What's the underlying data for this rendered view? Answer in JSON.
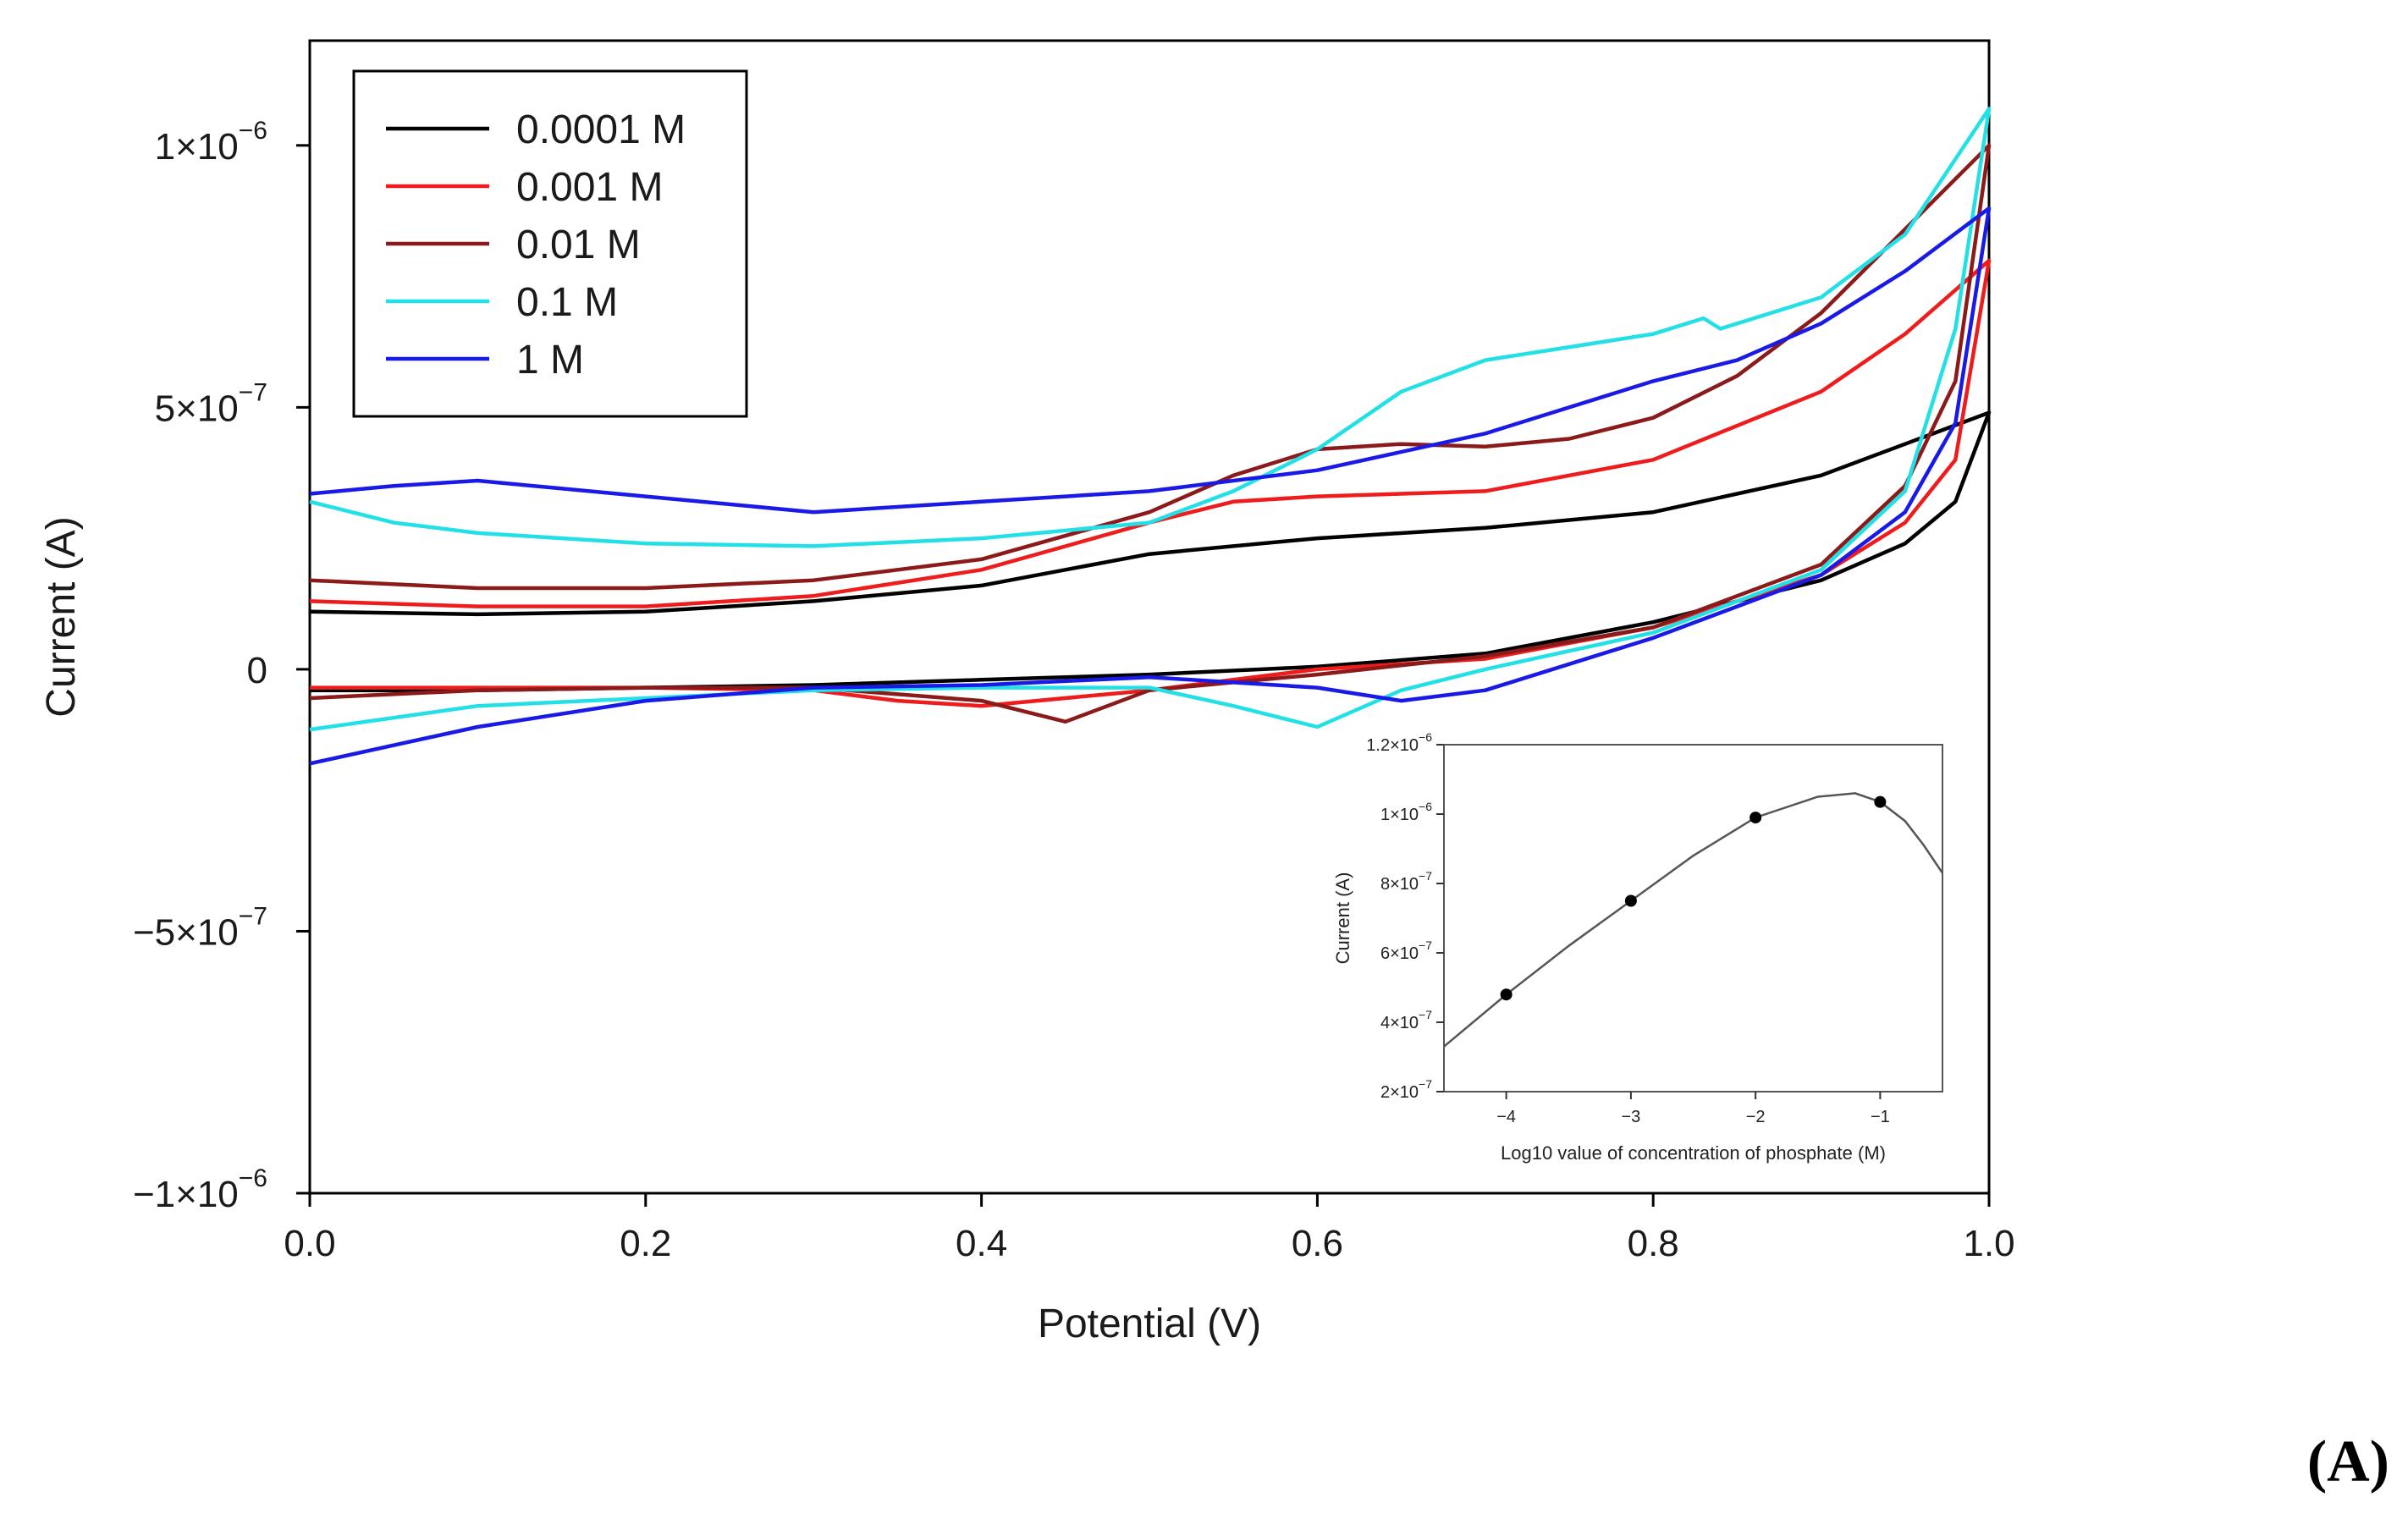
{
  "panel_label": "(A)",
  "chart_data": [
    {
      "type": "line",
      "xlabel": "Potential (V)",
      "ylabel": "Current (A)",
      "xlim": [
        0.0,
        1.0
      ],
      "ylim": [
        -1e-06,
        1.2e-06
      ],
      "xticks": [
        0.0,
        0.2,
        0.4,
        0.6,
        0.8,
        1.0
      ],
      "xtick_labels": [
        "0.0",
        "0.2",
        "0.4",
        "0.6",
        "0.8",
        "1.0"
      ],
      "yticks": [
        1e-06,
        5e-07,
        0,
        -5e-07,
        -1e-06
      ],
      "ytick_labels": [
        {
          "mantissa": "1",
          "exp": "−6"
        },
        {
          "mantissa": "5",
          "exp": "−7"
        },
        {
          "mantissa": "0",
          "exp": ""
        },
        {
          "mantissa": "−5",
          "exp": "−7"
        },
        {
          "mantissa": "−1",
          "exp": "−6"
        }
      ],
      "legend_position": "top-left",
      "series": [
        {
          "name": "0.0001 M",
          "color": "#000000",
          "forward": [
            [
              0,
              1.1e-07
            ],
            [
              0.1,
              1.05e-07
            ],
            [
              0.2,
              1.1e-07
            ],
            [
              0.3,
              1.3e-07
            ],
            [
              0.4,
              1.6e-07
            ],
            [
              0.5,
              2.2e-07
            ],
            [
              0.6,
              2.5e-07
            ],
            [
              0.7,
              2.7e-07
            ],
            [
              0.8,
              3e-07
            ],
            [
              0.9,
              3.7e-07
            ],
            [
              0.95,
              4.3e-07
            ],
            [
              1.0,
              4.9e-07
            ]
          ],
          "reverse": [
            [
              1.0,
              4.9e-07
            ],
            [
              0.98,
              3.2e-07
            ],
            [
              0.95,
              2.4e-07
            ],
            [
              0.9,
              1.7e-07
            ],
            [
              0.8,
              9e-08
            ],
            [
              0.7,
              3e-08
            ],
            [
              0.6,
              5e-09
            ],
            [
              0.5,
              -1e-08
            ],
            [
              0.4,
              -2e-08
            ],
            [
              0.3,
              -3e-08
            ],
            [
              0.2,
              -3.5e-08
            ],
            [
              0.1,
              -4e-08
            ],
            [
              0,
              -4e-08
            ]
          ]
        },
        {
          "name": "0.001 M",
          "color": "#ee1c1c",
          "forward": [
            [
              0,
              1.3e-07
            ],
            [
              0.1,
              1.2e-07
            ],
            [
              0.2,
              1.2e-07
            ],
            [
              0.3,
              1.4e-07
            ],
            [
              0.4,
              1.9e-07
            ],
            [
              0.5,
              2.8e-07
            ],
            [
              0.55,
              3.2e-07
            ],
            [
              0.6,
              3.3e-07
            ],
            [
              0.7,
              3.4e-07
            ],
            [
              0.8,
              4e-07
            ],
            [
              0.9,
              5.3e-07
            ],
            [
              0.95,
              6.4e-07
            ],
            [
              1.0,
              7.8e-07
            ]
          ],
          "reverse": [
            [
              1.0,
              7.8e-07
            ],
            [
              0.98,
              4e-07
            ],
            [
              0.95,
              2.8e-07
            ],
            [
              0.9,
              1.8e-07
            ],
            [
              0.8,
              8e-08
            ],
            [
              0.7,
              2e-08
            ],
            [
              0.6,
              0
            ],
            [
              0.5,
              -4e-08
            ],
            [
              0.4,
              -7e-08
            ],
            [
              0.35,
              -6e-08
            ],
            [
              0.3,
              -4e-08
            ],
            [
              0.2,
              -3.5e-08
            ],
            [
              0.1,
              -3.5e-08
            ],
            [
              0,
              -3.5e-08
            ]
          ]
        },
        {
          "name": "0.01 M",
          "color": "#8b1a1a",
          "forward": [
            [
              0,
              1.7e-07
            ],
            [
              0.1,
              1.55e-07
            ],
            [
              0.2,
              1.55e-07
            ],
            [
              0.3,
              1.7e-07
            ],
            [
              0.4,
              2.1e-07
            ],
            [
              0.5,
              3e-07
            ],
            [
              0.55,
              3.7e-07
            ],
            [
              0.6,
              4.2e-07
            ],
            [
              0.65,
              4.3e-07
            ],
            [
              0.7,
              4.25e-07
            ],
            [
              0.75,
              4.4e-07
            ],
            [
              0.8,
              4.8e-07
            ],
            [
              0.85,
              5.6e-07
            ],
            [
              0.9,
              6.8e-07
            ],
            [
              0.95,
              8.4e-07
            ],
            [
              1.0,
              1e-06
            ]
          ],
          "reverse": [
            [
              1.0,
              1e-06
            ],
            [
              0.98,
              5.5e-07
            ],
            [
              0.95,
              3.5e-07
            ],
            [
              0.9,
              2e-07
            ],
            [
              0.8,
              8e-08
            ],
            [
              0.7,
              2.5e-08
            ],
            [
              0.6,
              -1e-08
            ],
            [
              0.5,
              -4e-08
            ],
            [
              0.45,
              -1e-07
            ],
            [
              0.4,
              -6e-08
            ],
            [
              0.3,
              -3.5e-08
            ],
            [
              0.2,
              -3.5e-08
            ],
            [
              0.1,
              -4e-08
            ],
            [
              0,
              -5.5e-08
            ]
          ]
        },
        {
          "name": "0.1 M",
          "color": "#22e0e6",
          "forward": [
            [
              0,
              3.2e-07
            ],
            [
              0.05,
              2.8e-07
            ],
            [
              0.1,
              2.6e-07
            ],
            [
              0.2,
              2.4e-07
            ],
            [
              0.3,
              2.35e-07
            ],
            [
              0.4,
              2.5e-07
            ],
            [
              0.5,
              2.8e-07
            ],
            [
              0.55,
              3.4e-07
            ],
            [
              0.6,
              4.2e-07
            ],
            [
              0.65,
              5.3e-07
            ],
            [
              0.7,
              5.9e-07
            ],
            [
              0.8,
              6.4e-07
            ],
            [
              0.83,
              6.7e-07
            ],
            [
              0.84,
              6.5e-07
            ],
            [
              0.9,
              7.1e-07
            ],
            [
              0.95,
              8.3e-07
            ],
            [
              1.0,
              1.07e-06
            ]
          ],
          "reverse": [
            [
              1.0,
              1.07e-06
            ],
            [
              0.98,
              6.5e-07
            ],
            [
              0.95,
              3.4e-07
            ],
            [
              0.9,
              1.9e-07
            ],
            [
              0.8,
              7e-08
            ],
            [
              0.7,
              0
            ],
            [
              0.65,
              -4e-08
            ],
            [
              0.6,
              -1.1e-07
            ],
            [
              0.55,
              -7e-08
            ],
            [
              0.5,
              -3.5e-08
            ],
            [
              0.4,
              -3.5e-08
            ],
            [
              0.3,
              -4e-08
            ],
            [
              0.2,
              -5.5e-08
            ],
            [
              0.1,
              -7e-08
            ],
            [
              0,
              -1.15e-07
            ]
          ]
        },
        {
          "name": "1 M",
          "color": "#1a1ae6",
          "forward": [
            [
              0,
              3.35e-07
            ],
            [
              0.05,
              3.5e-07
            ],
            [
              0.1,
              3.6e-07
            ],
            [
              0.2,
              3.3e-07
            ],
            [
              0.3,
              3e-07
            ],
            [
              0.4,
              3.2e-07
            ],
            [
              0.5,
              3.4e-07
            ],
            [
              0.6,
              3.8e-07
            ],
            [
              0.7,
              4.5e-07
            ],
            [
              0.8,
              5.5e-07
            ],
            [
              0.85,
              5.9e-07
            ],
            [
              0.9,
              6.6e-07
            ],
            [
              0.95,
              7.6e-07
            ],
            [
              1.0,
              8.8e-07
            ]
          ],
          "reverse": [
            [
              1.0,
              8.8e-07
            ],
            [
              0.98,
              4.7e-07
            ],
            [
              0.95,
              3e-07
            ],
            [
              0.9,
              1.8e-07
            ],
            [
              0.8,
              6e-08
            ],
            [
              0.7,
              -4e-08
            ],
            [
              0.65,
              -6e-08
            ],
            [
              0.6,
              -3.5e-08
            ],
            [
              0.5,
              -1.5e-08
            ],
            [
              0.4,
              -3e-08
            ],
            [
              0.3,
              -3.5e-08
            ],
            [
              0.2,
              -6e-08
            ],
            [
              0.1,
              -1.1e-07
            ],
            [
              0,
              -1.8e-07
            ]
          ]
        }
      ]
    },
    {
      "type": "scatter",
      "xlabel": "Log10 value of concentration of phosphate (M)",
      "ylabel": "Current (A)",
      "xlim": [
        -4.5,
        -0.5
      ],
      "ylim": [
        2e-07,
        1.2e-06
      ],
      "xticks": [
        -4,
        -3,
        -2,
        -1
      ],
      "xtick_labels": [
        "−4",
        "−3",
        "−2",
        "−1"
      ],
      "yticks": [
        1.2e-06,
        1e-06,
        8e-07,
        6e-07,
        4e-07,
        2e-07
      ],
      "ytick_labels": [
        {
          "mantissa": "1.2",
          "exp": "−6"
        },
        {
          "mantissa": "1",
          "exp": "−6"
        },
        {
          "mantissa": "8",
          "exp": "−7"
        },
        {
          "mantissa": "6",
          "exp": "−7"
        },
        {
          "mantissa": "4",
          "exp": "−7"
        },
        {
          "mantissa": "2",
          "exp": "−7"
        }
      ],
      "points": [
        [
          -4,
          4.8e-07
        ],
        [
          -3,
          7.5e-07
        ],
        [
          -2,
          9.9e-07
        ],
        [
          -1,
          1.035e-06
        ]
      ],
      "fit_curve": [
        [
          -4.5,
          3.3e-07
        ],
        [
          -4,
          4.8e-07
        ],
        [
          -3.5,
          6.2e-07
        ],
        [
          -3,
          7.5e-07
        ],
        [
          -2.5,
          8.8e-07
        ],
        [
          -2,
          9.9e-07
        ],
        [
          -1.5,
          1.05e-06
        ],
        [
          -1.2,
          1.06e-06
        ],
        [
          -1,
          1.035e-06
        ],
        [
          -0.8,
          9.8e-07
        ],
        [
          -0.65,
          9.1e-07
        ],
        [
          -0.5,
          8.3e-07
        ]
      ]
    }
  ]
}
